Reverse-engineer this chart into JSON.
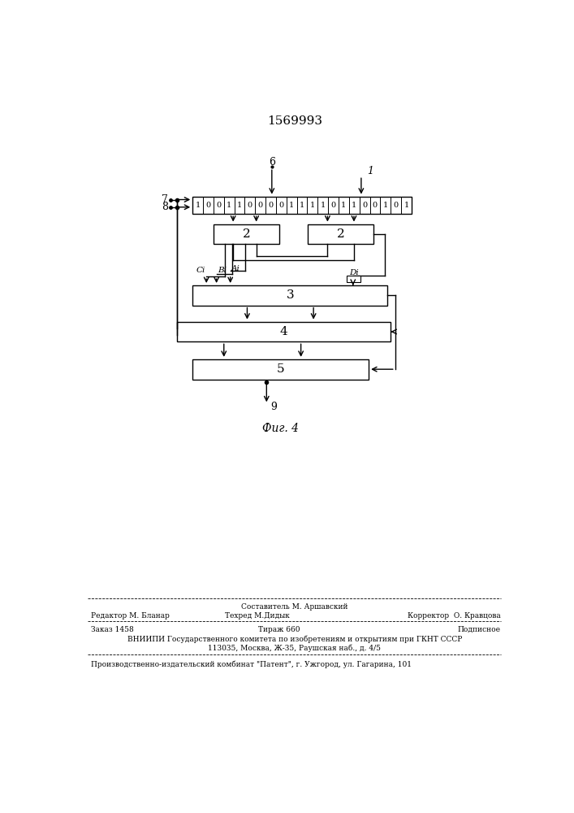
{
  "title": "1569993",
  "fig_caption": "Фиг. 4",
  "background_color": "#ffffff",
  "diagram": {
    "register_bits": [
      "1",
      "0",
      "0",
      "1",
      "1",
      "0",
      "0",
      "0",
      "0",
      "1",
      "1",
      "1",
      "1",
      "0",
      "1",
      "1",
      "0",
      "0",
      "1",
      "0",
      "1"
    ],
    "labels": {
      "input_6": "6",
      "input_1": "1",
      "input_7": "7",
      "input_8": "8",
      "block2_left": "2",
      "block2_right": "2",
      "block3": "3",
      "block4": "4",
      "block5": "5",
      "output_9": "9",
      "ci": "Ci",
      "bi": "Bi",
      "ai": "Ai",
      "di": "Di"
    }
  },
  "footer": {
    "col2_top": "Составитель М. Аршавский",
    "col1_bot": "Редактор М. Бланар",
    "col2_bot": "Техред М.Дидык",
    "col3_bot": "Корректор  О. Кравцова",
    "order": "Заказ 1458",
    "tirazh": "Тираж 660",
    "podp": "Подписное",
    "vniip": "ВНИИПИ Государственного комитета по изобретениям и открытиям при ГКНТ СССР",
    "addr": "113035, Москва, Ж-35, Раушская наб., д. 4/5",
    "patent": "Производственно-издательский комбинат \"Патент\", г. Ужгород, ул. Гагарина, 101"
  }
}
